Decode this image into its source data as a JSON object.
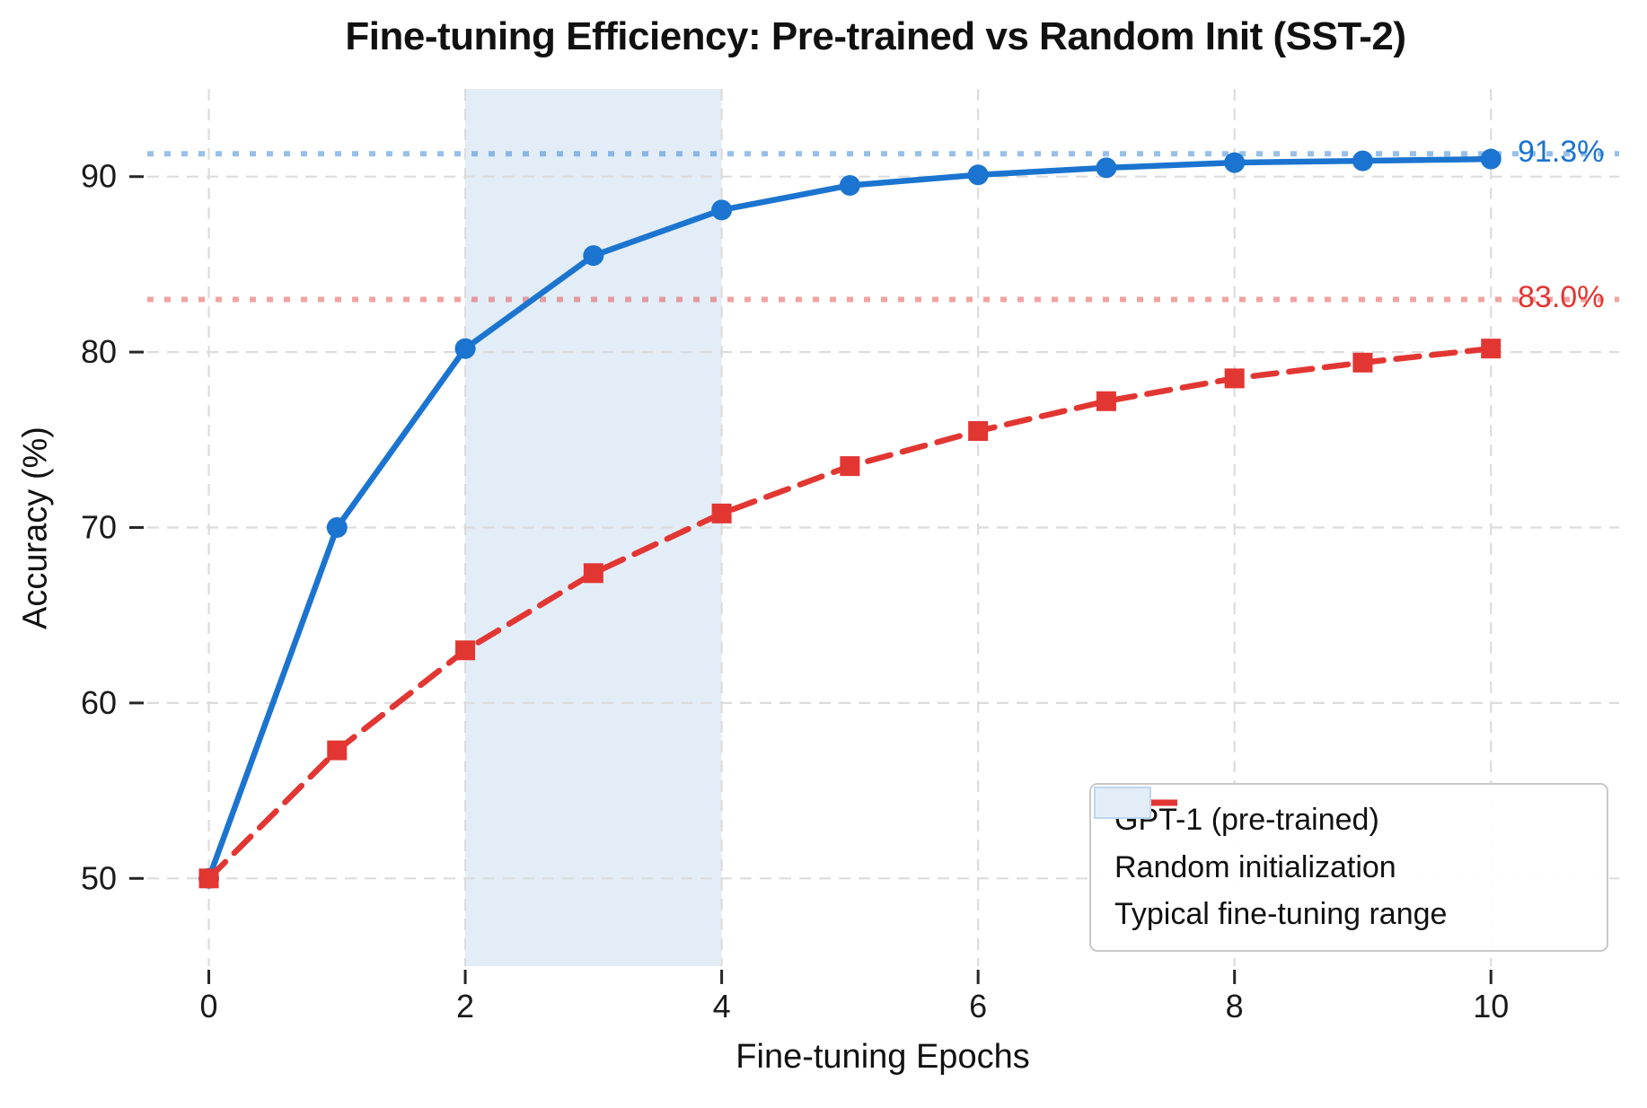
{
  "chart_data": {
    "type": "line",
    "title": "Fine-tuning Efficiency: Pre-trained vs Random Init (SST-2)",
    "xlabel": "Fine-tuning Epochs",
    "ylabel": "Accuracy (%)",
    "x": [
      0,
      1,
      2,
      3,
      4,
      5,
      6,
      7,
      8,
      9,
      10
    ],
    "series": [
      {
        "name": "GPT-1 (pre-trained)",
        "color": "#1b74cf",
        "line_style": "solid",
        "marker": "circle",
        "values": [
          50.0,
          70.0,
          80.2,
          85.5,
          88.1,
          89.5,
          90.1,
          90.5,
          90.8,
          90.9,
          91.0
        ]
      },
      {
        "name": "Random initialization",
        "color": "#e23632",
        "line_style": "dashed",
        "marker": "square",
        "values": [
          50.0,
          57.3,
          63.0,
          67.4,
          70.8,
          73.5,
          75.5,
          77.2,
          78.5,
          79.4,
          80.2
        ]
      }
    ],
    "ref_lines": [
      {
        "label": "91.3%",
        "value": 91.3,
        "color": "#1b74cf"
      },
      {
        "label": "83.0%",
        "value": 83.0,
        "color": "#e23632"
      }
    ],
    "band": {
      "label": "Typical fine-tuning range",
      "x0": 2,
      "x1": 4,
      "fill": "#e3edf8",
      "edge": "#bcd6ef"
    },
    "xticks": [
      0,
      2,
      4,
      6,
      8,
      10
    ],
    "yticks": [
      50,
      60,
      70,
      80,
      90
    ],
    "xlim": [
      -0.48,
      11.0
    ],
    "ylim": [
      45,
      95
    ],
    "grid": true,
    "grid_color": "#dcdcdc",
    "tick_color": "#262626",
    "legend_position": "lower right"
  }
}
